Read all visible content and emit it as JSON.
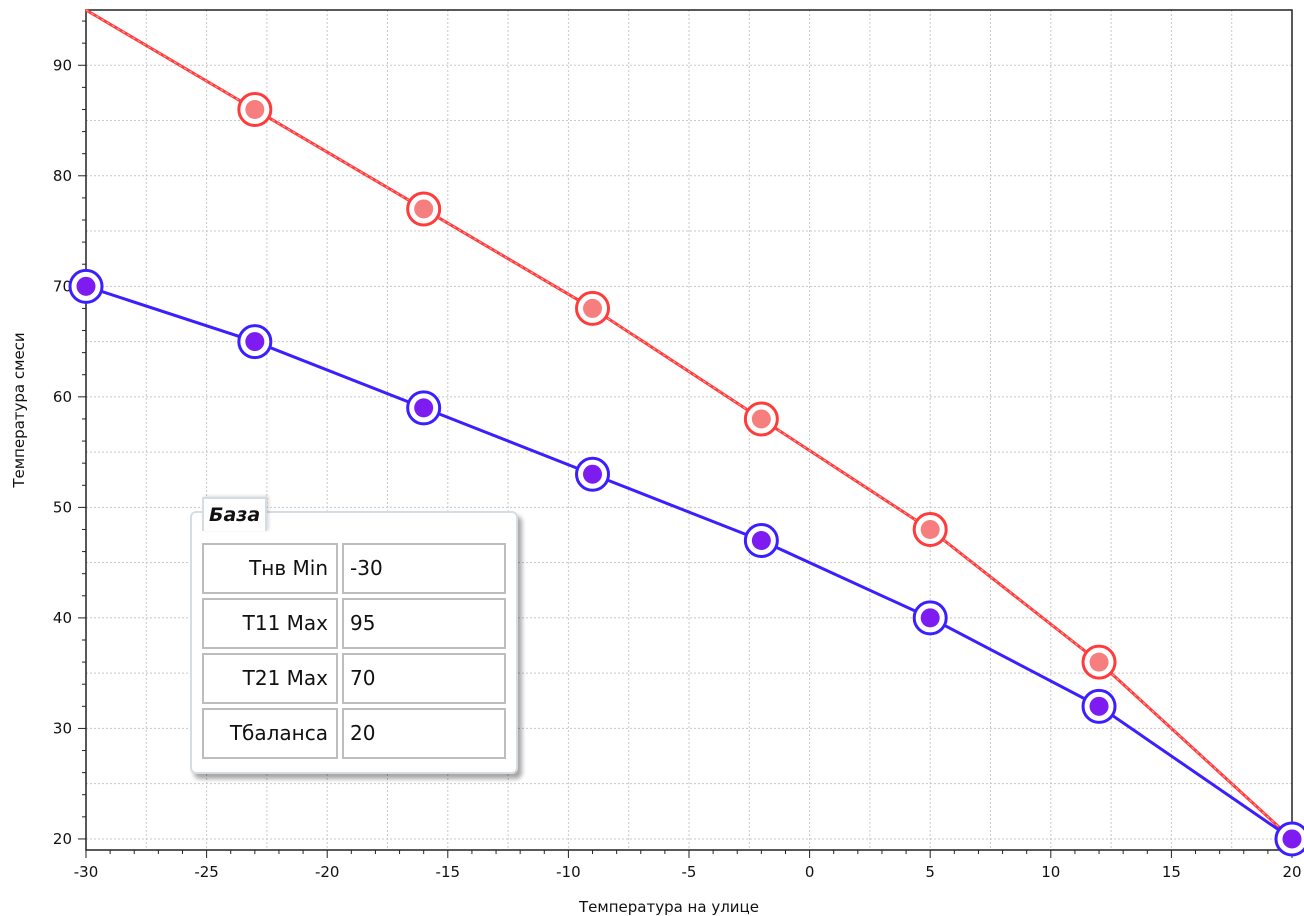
{
  "chart_data": {
    "type": "line",
    "xlabel": "Температура на улице",
    "ylabel": "Температура смеси",
    "xlim": [
      -30,
      20
    ],
    "ylim": [
      19,
      95
    ],
    "x_ticks": [
      -30,
      -25,
      -20,
      -15,
      -10,
      -5,
      0,
      5,
      10,
      15,
      20
    ],
    "y_ticks": [
      20,
      30,
      40,
      50,
      60,
      70,
      80,
      90
    ],
    "grid": true,
    "series": [
      {
        "x": [
          -30,
          -23,
          -16,
          -9,
          -2,
          5,
          12,
          20
        ],
        "y": [
          95,
          86,
          77,
          68,
          58,
          48,
          36,
          20
        ],
        "color": "#ff3b3b",
        "marker_fill": "#f77e7e",
        "style": "dashed-line"
      },
      {
        "x": [
          -30,
          -23,
          -16,
          -9,
          -2,
          5,
          12,
          20
        ],
        "y": [
          70,
          65,
          59,
          53,
          47,
          40,
          32,
          20
        ],
        "color": "#3b1fff",
        "marker_fill": "#7d1bf0",
        "style": "solid-line"
      }
    ],
    "marker_points": [
      {
        "series": 0,
        "x": -23,
        "y": 86
      },
      {
        "series": 0,
        "x": -16,
        "y": 77
      },
      {
        "series": 0,
        "x": -9,
        "y": 68
      },
      {
        "series": 0,
        "x": -2,
        "y": 58
      },
      {
        "series": 0,
        "x": 5,
        "y": 48
      },
      {
        "series": 0,
        "x": 12,
        "y": 36
      },
      {
        "series": 1,
        "x": -30,
        "y": 70
      },
      {
        "series": 1,
        "x": -23,
        "y": 65
      },
      {
        "series": 1,
        "x": -16,
        "y": 59
      },
      {
        "series": 1,
        "x": -9,
        "y": 53
      },
      {
        "series": 1,
        "x": -2,
        "y": 47
      },
      {
        "series": 1,
        "x": 5,
        "y": 40
      },
      {
        "series": 1,
        "x": 12,
        "y": 32
      },
      {
        "series": 1,
        "x": 20,
        "y": 20
      }
    ]
  },
  "panel": {
    "title": "База",
    "rows": [
      {
        "label": "Tнв Min",
        "value": "-30"
      },
      {
        "label": "T11 Max",
        "value": "95"
      },
      {
        "label": "T21 Max",
        "value": "70"
      },
      {
        "label": "Tбаланса",
        "value": "20"
      }
    ]
  }
}
